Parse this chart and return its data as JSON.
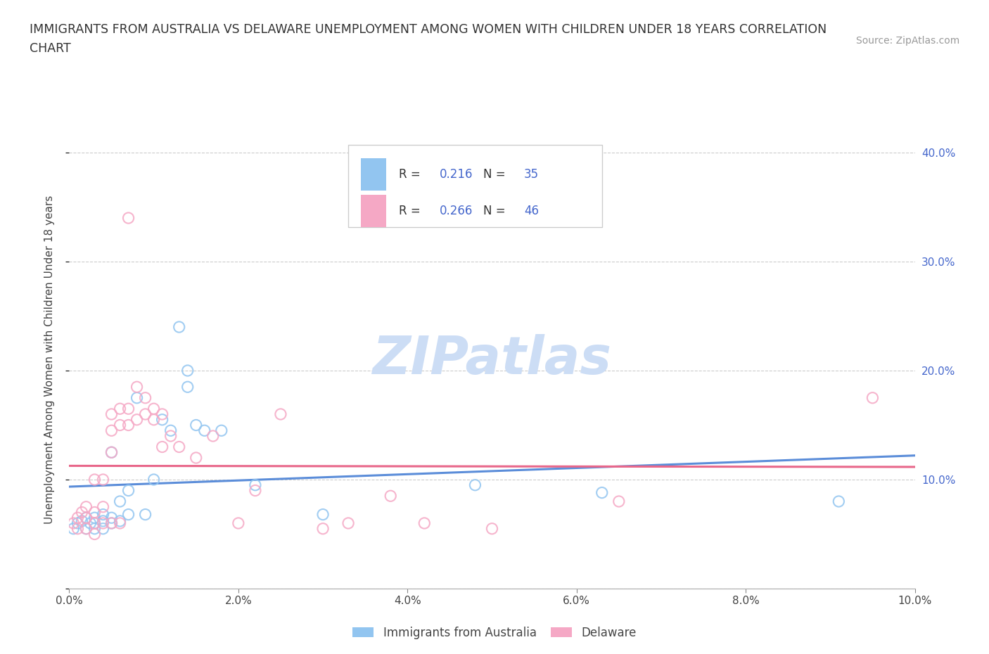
{
  "title_line1": "IMMIGRANTS FROM AUSTRALIA VS DELAWARE UNEMPLOYMENT AMONG WOMEN WITH CHILDREN UNDER 18 YEARS CORRELATION",
  "title_line2": "CHART",
  "source": "Source: ZipAtlas.com",
  "ylabel": "Unemployment Among Women with Children Under 18 years",
  "xlim": [
    0.0,
    0.1
  ],
  "ylim": [
    0.0,
    0.42
  ],
  "xticks": [
    0.0,
    0.02,
    0.04,
    0.06,
    0.08,
    0.1
  ],
  "xticklabels": [
    "0.0%",
    "2.0%",
    "4.0%",
    "6.0%",
    "8.0%",
    "10.0%"
  ],
  "yticks": [
    0.0,
    0.1,
    0.2,
    0.3,
    0.4
  ],
  "yticklabels_right": [
    "",
    "10.0%",
    "20.0%",
    "30.0%",
    "40.0%"
  ],
  "R_blue": "0.216",
  "N_blue": "35",
  "R_pink": "0.266",
  "N_pink": "46",
  "color_blue": "#92C5F0",
  "color_pink": "#F5A8C5",
  "color_blue_line": "#5B8DD9",
  "color_pink_line": "#E8678A",
  "color_text_blue": "#4466CC",
  "color_text_dark": "#333333",
  "color_grid": "#CCCCCC",
  "watermark_color": "#DDEEFF",
  "legend_label_blue": "Immigrants from Australia",
  "legend_label_pink": "Delaware",
  "blue_scatter_x": [
    0.0005,
    0.001,
    0.0015,
    0.002,
    0.002,
    0.0025,
    0.003,
    0.003,
    0.003,
    0.004,
    0.004,
    0.004,
    0.005,
    0.005,
    0.005,
    0.006,
    0.006,
    0.007,
    0.007,
    0.008,
    0.009,
    0.01,
    0.011,
    0.012,
    0.013,
    0.014,
    0.014,
    0.015,
    0.016,
    0.018,
    0.022,
    0.03,
    0.048,
    0.063,
    0.091
  ],
  "blue_scatter_y": [
    0.055,
    0.06,
    0.062,
    0.055,
    0.065,
    0.06,
    0.055,
    0.06,
    0.065,
    0.055,
    0.062,
    0.068,
    0.06,
    0.065,
    0.125,
    0.062,
    0.08,
    0.068,
    0.09,
    0.175,
    0.068,
    0.1,
    0.155,
    0.145,
    0.24,
    0.185,
    0.2,
    0.15,
    0.145,
    0.145,
    0.095,
    0.068,
    0.095,
    0.088,
    0.08
  ],
  "pink_scatter_x": [
    0.0005,
    0.001,
    0.001,
    0.0015,
    0.002,
    0.002,
    0.002,
    0.003,
    0.003,
    0.003,
    0.003,
    0.004,
    0.004,
    0.004,
    0.005,
    0.005,
    0.005,
    0.005,
    0.006,
    0.006,
    0.006,
    0.007,
    0.007,
    0.007,
    0.008,
    0.008,
    0.009,
    0.009,
    0.01,
    0.01,
    0.011,
    0.011,
    0.012,
    0.013,
    0.015,
    0.017,
    0.02,
    0.022,
    0.025,
    0.03,
    0.033,
    0.038,
    0.042,
    0.05,
    0.065,
    0.095
  ],
  "pink_scatter_y": [
    0.06,
    0.055,
    0.065,
    0.07,
    0.055,
    0.065,
    0.075,
    0.05,
    0.06,
    0.07,
    0.1,
    0.06,
    0.075,
    0.1,
    0.06,
    0.125,
    0.145,
    0.16,
    0.06,
    0.15,
    0.165,
    0.34,
    0.15,
    0.165,
    0.155,
    0.185,
    0.16,
    0.175,
    0.155,
    0.165,
    0.13,
    0.16,
    0.14,
    0.13,
    0.12,
    0.14,
    0.06,
    0.09,
    0.16,
    0.055,
    0.06,
    0.085,
    0.06,
    0.055,
    0.08,
    0.175
  ]
}
